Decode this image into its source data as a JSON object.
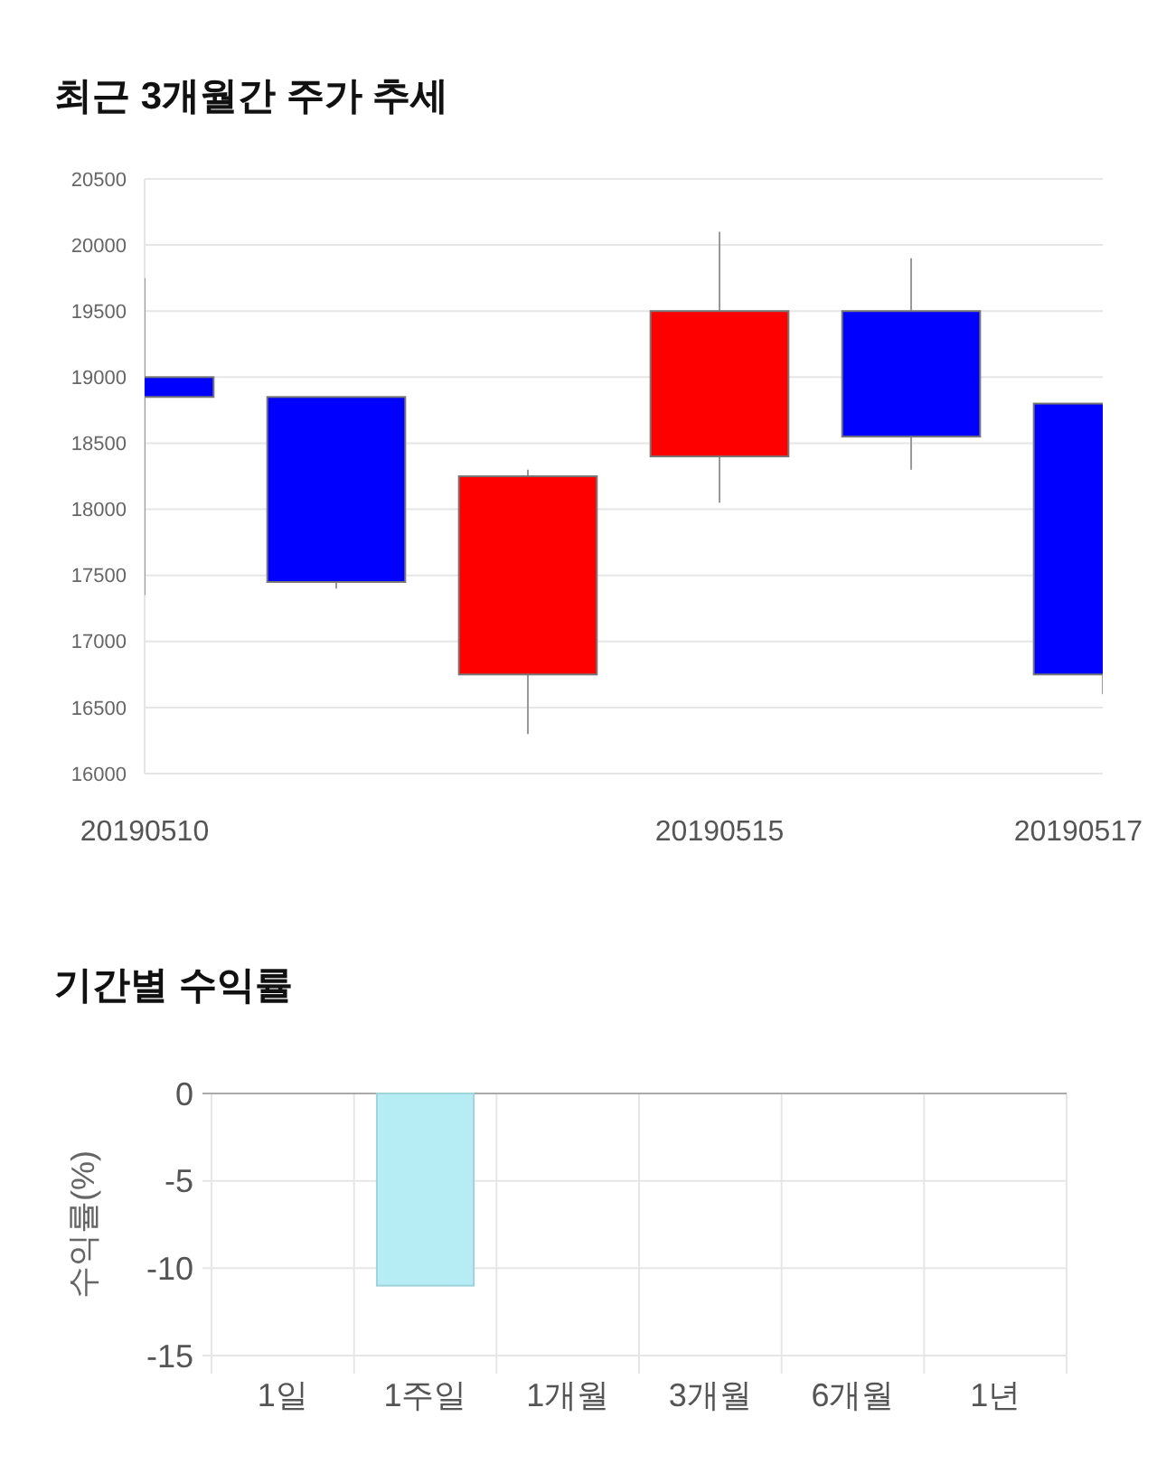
{
  "chart_data": [
    {
      "type": "candlestick",
      "title": "최근 3개월간 주가 추세",
      "categories": [
        "20190510",
        null,
        null,
        "20190515",
        null,
        "20190517"
      ],
      "ohlc": [
        [
          19000,
          19750,
          17350,
          18850
        ],
        [
          18850,
          18850,
          17400,
          17450
        ],
        [
          16750,
          18300,
          16300,
          18250
        ],
        [
          18400,
          20100,
          18050,
          19500
        ],
        [
          19500,
          19900,
          18300,
          18550
        ],
        [
          18800,
          18800,
          16600,
          16750
        ]
      ],
      "colors": [
        "#0000ff",
        "#0000ff",
        "#ff0000",
        "#ff0000",
        "#0000ff",
        "#0000ff"
      ],
      "ylim": [
        16000,
        20500
      ],
      "yticks": [
        16000,
        16500,
        17000,
        17500,
        18000,
        18500,
        19000,
        19500,
        20000,
        20500
      ],
      "grid": "y"
    },
    {
      "type": "bar",
      "title": "기간별 수익률",
      "ylabel": "수익률(%)",
      "categories": [
        "1일",
        "1주일",
        "1개월",
        "3개월",
        "6개월",
        "1년"
      ],
      "values": [
        null,
        -11,
        null,
        null,
        null,
        null
      ],
      "color": "#b2ebf2",
      "ylim": [
        -15,
        0
      ],
      "yticks": [
        0,
        -5,
        -10,
        -15
      ],
      "grid": true
    }
  ]
}
